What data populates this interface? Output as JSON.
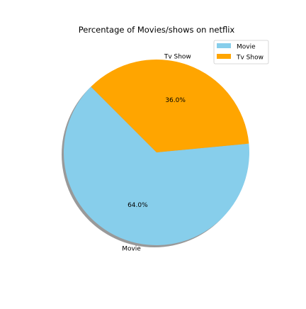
{
  "chart_data": {
    "type": "pie",
    "title": "Percentage of Movies/shows on netflix",
    "categories": [
      "Movie",
      "Tv Show"
    ],
    "values": [
      64.0,
      36.0
    ],
    "percent_labels": [
      "64.0%",
      "36.0%"
    ],
    "colors": [
      "#87CEEB",
      "#FFA500"
    ],
    "shadow": true,
    "legend": {
      "position": "top-right",
      "entries": [
        "Movie",
        "Tv Show"
      ]
    }
  }
}
